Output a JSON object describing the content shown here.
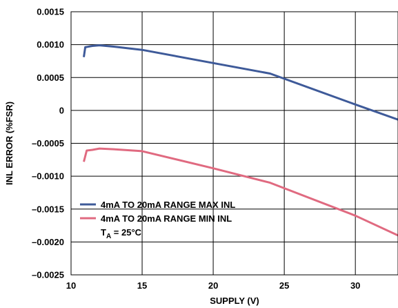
{
  "chart_data": {
    "type": "line",
    "xlabel": "SUPPLY (V)",
    "ylabel": "INL ERROR (%FSR)",
    "xlim": [
      10,
      33
    ],
    "ylim": [
      -0.0025,
      0.0015
    ],
    "x_ticks": [
      10,
      15,
      20,
      25,
      30
    ],
    "x_tick_labels": [
      "10",
      "15",
      "20",
      "25",
      "30"
    ],
    "y_ticks": [
      0.0015,
      0.001,
      0.0005,
      0,
      -0.0005,
      -0.001,
      -0.0015,
      -0.002,
      -0.0025
    ],
    "y_tick_labels": [
      "0.0015",
      "0.0010",
      "0.0005",
      "0",
      "–0.0005",
      "–0.0010",
      "–0.0015",
      "–0.0020",
      "–0.0025"
    ],
    "grid": true,
    "legend_position": "bottom-left",
    "annotation": {
      "main": "T",
      "sub": "A",
      "rest": " = 25°C"
    },
    "series": [
      {
        "name": "4mA TO 20mA RANGE MAX INL",
        "color": "#3e5a99",
        "x": [
          10.9,
          11.0,
          11.5,
          12.0,
          13.0,
          15.0,
          20.0,
          24.0,
          30.0,
          33.0
        ],
        "y": [
          0.00081,
          0.00096,
          0.00098,
          0.00099,
          0.00097,
          0.00092,
          0.00072,
          0.00056,
          9e-05,
          -0.00014
        ]
      },
      {
        "name": "4mA TO 20mA RANGE MIN INL",
        "color": "#e06a80",
        "x": [
          10.9,
          11.1,
          11.5,
          12.0,
          13.0,
          15.0,
          20.0,
          24.0,
          30.0,
          33.0
        ],
        "y": [
          -0.00078,
          -0.00061,
          -0.0006,
          -0.00058,
          -0.00059,
          -0.00062,
          -0.00088,
          -0.0011,
          -0.0016,
          -0.0019
        ]
      }
    ]
  }
}
